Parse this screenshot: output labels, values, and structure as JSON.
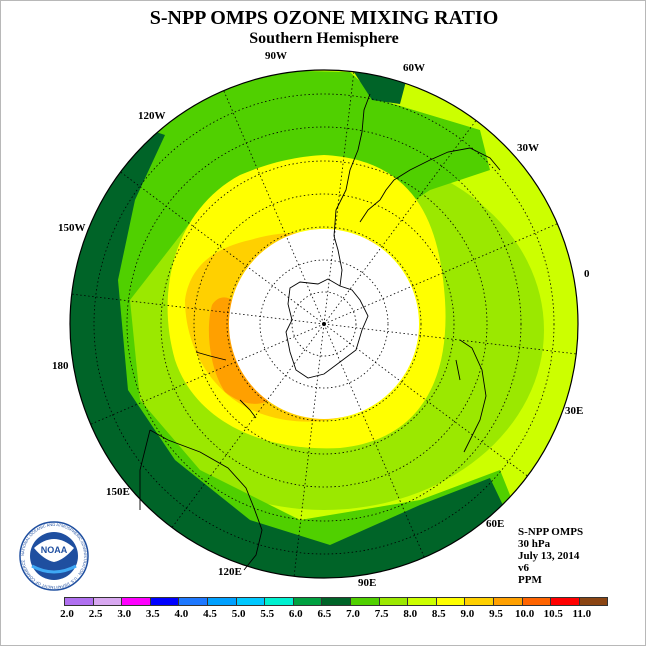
{
  "header": {
    "title": "S-NPP OMPS OZONE MIXING RATIO",
    "subtitle": "Southern Hemisphere"
  },
  "longitude_labels": {
    "w90": "90W",
    "w60": "60W",
    "w120": "120W",
    "w30": "30W",
    "w150": "150W",
    "zero": "0",
    "lon180": "180",
    "e30": "30E",
    "e150": "150E",
    "e60": "60E",
    "e120": "120E",
    "e90": "90E"
  },
  "info": {
    "instrument": "S-NPP OMPS",
    "level": "30 hPa",
    "date": "July 13, 2014",
    "version": "v6",
    "units": "PPM"
  },
  "logo": {
    "text": "NOAA",
    "ring_text": "NATIONAL OCEANIC AND ATMOSPHERIC ADMINISTRATION · U.S. DEPARTMENT OF COMMERCE"
  },
  "colorbar": {
    "labels": [
      "2.0",
      "2.5",
      "3.0",
      "3.5",
      "4.0",
      "4.5",
      "5.0",
      "5.5",
      "6.0",
      "6.5",
      "7.0",
      "7.5",
      "8.0",
      "8.5",
      "9.0",
      "9.5",
      "10.0",
      "10.5",
      "11.0"
    ],
    "colors": [
      "#b070f0",
      "#d8a8f0",
      "#ff00ff",
      "#0000ff",
      "#1e78ff",
      "#00a0ff",
      "#00c8ff",
      "#00f0d0",
      "#00a040",
      "#006428",
      "#50d000",
      "#9be800",
      "#ccff00",
      "#ffff00",
      "#ffd000",
      "#ffa000",
      "#ff6400",
      "#ff0000",
      "#8b4513"
    ]
  },
  "map_colors": {
    "darkgreen": "#006428",
    "midgreen": "#50d000",
    "lightgreen": "#9be800",
    "lime": "#ccff00",
    "yellow": "#ffff00",
    "gold": "#ffd000",
    "orange": "#ffa000",
    "hole": "#ffffff"
  }
}
